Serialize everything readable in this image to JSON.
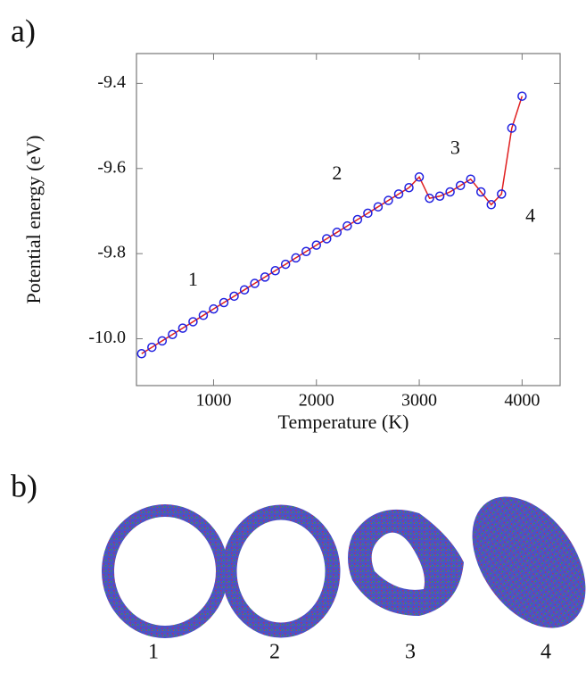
{
  "panel_a_label": "a)",
  "panel_b_label": "b)",
  "snapshots": [
    "1",
    "2",
    "3",
    "4"
  ],
  "chart_data": {
    "type": "line",
    "xlabel": "Temperature (K)",
    "ylabel": "Potential energy (eV)",
    "x": [
      300,
      400,
      500,
      600,
      700,
      800,
      900,
      1000,
      1100,
      1200,
      1300,
      1400,
      1500,
      1600,
      1700,
      1800,
      1900,
      2000,
      2100,
      2200,
      2300,
      2400,
      2500,
      2600,
      2700,
      2800,
      2900,
      3000,
      3100,
      3200,
      3300,
      3400,
      3500,
      3600,
      3700,
      3800,
      3900,
      4000
    ],
    "values": [
      -10.035,
      -10.02,
      -10.005,
      -9.99,
      -9.975,
      -9.96,
      -9.945,
      -9.93,
      -9.915,
      -9.9,
      -9.885,
      -9.87,
      -9.855,
      -9.84,
      -9.825,
      -9.81,
      -9.795,
      -9.78,
      -9.765,
      -9.75,
      -9.735,
      -9.72,
      -9.705,
      -9.69,
      -9.675,
      -9.66,
      -9.645,
      -9.62,
      -9.67,
      -9.665,
      -9.655,
      -9.64,
      -9.625,
      -9.655,
      -9.685,
      -9.66,
      -9.505,
      -9.43
    ],
    "line_color": "#e02020",
    "marker_color": "#2020e0",
    "xlim": [
      250,
      4370
    ],
    "ylim": [
      -10.11,
      -9.33
    ],
    "xticks": [
      1000,
      2000,
      3000,
      4000
    ],
    "yticks": [
      {
        "value": -10,
        "label": "-10.0"
      },
      -9.8,
      -9.6,
      -9.4
    ],
    "annotations": [
      {
        "text": "1",
        "x": 800,
        "y": -9.865
      },
      {
        "text": "2",
        "x": 2200,
        "y": -9.615
      },
      {
        "text": "3",
        "x": 3350,
        "y": -9.555
      },
      {
        "text": "4",
        "x": 4080,
        "y": -9.715
      }
    ]
  }
}
